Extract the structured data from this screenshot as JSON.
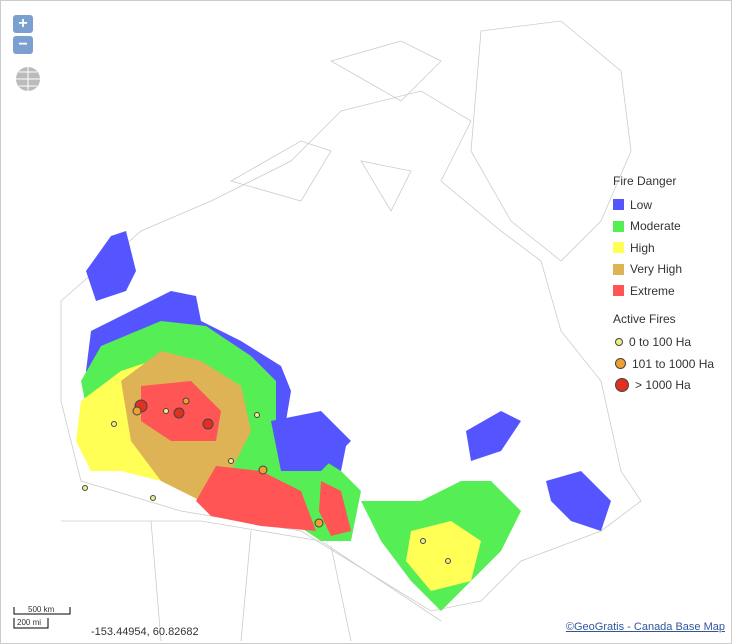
{
  "map": {
    "zoom": {
      "in": "+",
      "out": "−"
    },
    "legend": {
      "fire_danger": {
        "title": "Fire Danger",
        "items": [
          {
            "label": "Low",
            "color": "#5555ff"
          },
          {
            "label": "Moderate",
            "color": "#55ee55"
          },
          {
            "label": "High",
            "color": "#ffff55"
          },
          {
            "label": "Very High",
            "color": "#ddb355"
          },
          {
            "label": "Extreme",
            "color": "#ff5555"
          }
        ]
      },
      "active_fires": {
        "title": "Active Fires",
        "items": [
          {
            "label": "0 to 100 Ha",
            "color": "#eeee88"
          },
          {
            "label": "101 to 1000 Ha",
            "color": "#f0a030"
          },
          {
            "label": "> 1000 Ha",
            "color": "#e03020"
          }
        ]
      }
    },
    "scale": {
      "km": "500 km",
      "mi": "200 mi"
    },
    "coordinates": "-153.44954, 60.82682",
    "attribution": "©GeoGratis - Canada Base Map"
  }
}
